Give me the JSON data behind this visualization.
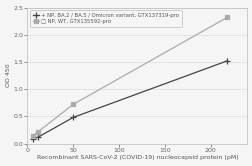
{
  "series": [
    {
      "label": "+ NP, BA.2 / BA.5 / Omicron variant, GTX137319-pro",
      "x": [
        6,
        12,
        50,
        218
      ],
      "y": [
        0.08,
        0.12,
        0.48,
        1.52
      ],
      "color": "#444444",
      "marker": "+",
      "markersize": 5,
      "linewidth": 0.9
    },
    {
      "label": "□ NP, WT, GTX135592-pro",
      "x": [
        6,
        12,
        50,
        218
      ],
      "y": [
        0.14,
        0.22,
        0.72,
        2.32
      ],
      "color": "#aaaaaa",
      "marker": "s",
      "markersize": 3.5,
      "linewidth": 0.9
    }
  ],
  "xlabel": "Recombinant SARS-CoV-2 (COVID-19) nucleocapsid protein (pM)",
  "ylabel": "OD 450",
  "xlim": [
    0,
    240
  ],
  "ylim": [
    0,
    2.5
  ],
  "xticks": [
    0,
    50,
    100,
    150,
    200
  ],
  "yticks": [
    0,
    0.5,
    1.0,
    1.5,
    2.0,
    2.5
  ],
  "background_color": "#f5f5f5",
  "grid_color": "#dddddd",
  "legend_fontsize": 3.8,
  "tick_fontsize": 4.5,
  "label_fontsize": 4.5
}
